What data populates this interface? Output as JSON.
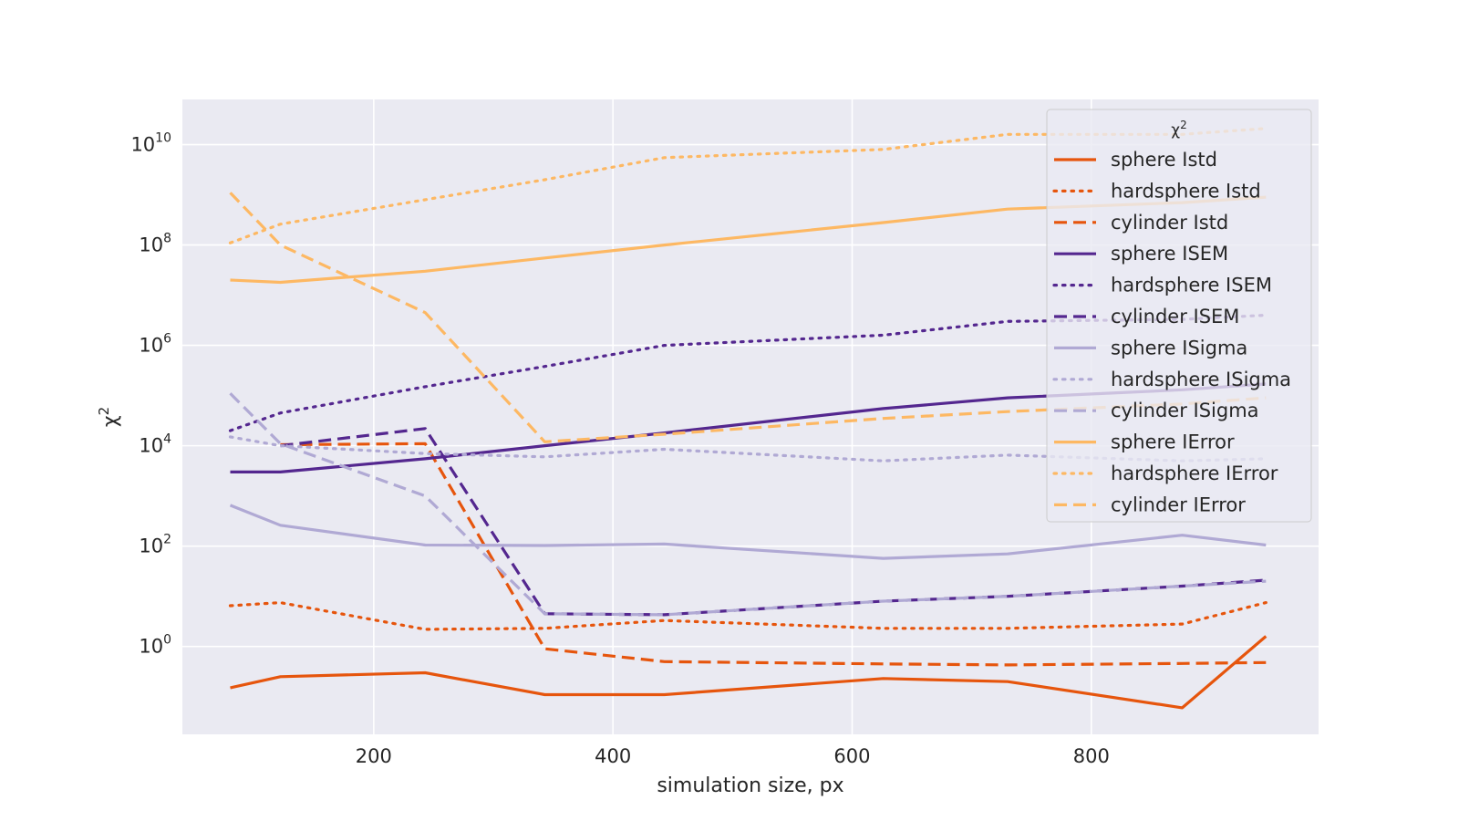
{
  "chart_data": {
    "type": "line",
    "xlabel": "simulation size, px",
    "ylabel": "χ²",
    "ylabel_base": "χ",
    "ylabel_exp": "2",
    "xlim": [
      40,
      990
    ],
    "ylim_log10": [
      -1.75,
      10.9
    ],
    "yscale": "log",
    "grid": true,
    "legend_position": "top-right",
    "legend_title": "χ²",
    "legend_title_base": "χ",
    "legend_title_exp": "2",
    "x_ticks": [
      {
        "value": 200,
        "label": "200"
      },
      {
        "value": 400,
        "label": "400"
      },
      {
        "value": 600,
        "label": "600"
      },
      {
        "value": 800,
        "label": "800"
      }
    ],
    "y_ticks": [
      {
        "exp": 0,
        "base": "10",
        "sup": "0"
      },
      {
        "exp": 2,
        "base": "10",
        "sup": "2"
      },
      {
        "exp": 4,
        "base": "10",
        "sup": "4"
      },
      {
        "exp": 6,
        "base": "10",
        "sup": "6"
      },
      {
        "exp": 8,
        "base": "10",
        "sup": "8"
      },
      {
        "exp": 10,
        "base": "10",
        "sup": "10"
      }
    ],
    "x": [
      80,
      122,
      243,
      343,
      443,
      626,
      730,
      876,
      946
    ],
    "series": [
      {
        "name": "sphere Istd",
        "color": "#e6550d",
        "dash": "solid",
        "values": [
          0.15,
          0.25,
          0.3,
          0.11,
          0.11,
          0.23,
          0.2,
          0.06,
          1.6
        ]
      },
      {
        "name": "hardsphere Istd",
        "color": "#e6550d",
        "dash": "dotted",
        "values": [
          6.5,
          7.5,
          2.2,
          2.3,
          3.3,
          2.3,
          2.3,
          2.8,
          7.5
        ]
      },
      {
        "name": "cylinder Istd",
        "color": "#e6550d",
        "dash": "dashed",
        "values": [
          null,
          10500,
          11000,
          0.9,
          0.5,
          0.45,
          0.43,
          0.46,
          0.48
        ]
      },
      {
        "name": "sphere ISEM",
        "color": "#54278f",
        "dash": "solid",
        "values": [
          3000,
          3000,
          5500,
          10000,
          18000,
          55000,
          90000,
          130000,
          170000
        ]
      },
      {
        "name": "hardsphere ISEM",
        "color": "#54278f",
        "dash": "dotted",
        "values": [
          20000,
          45000,
          150000,
          380000,
          1000000,
          1600000,
          3000000,
          3300000,
          4000000
        ]
      },
      {
        "name": "cylinder ISEM",
        "color": "#54278f",
        "dash": "dashed",
        "values": [
          null,
          10000,
          22000,
          4.5,
          4.3,
          8,
          10,
          16,
          21
        ]
      },
      {
        "name": "sphere ISigma",
        "color": "#b0a9d4",
        "dash": "solid",
        "values": [
          650,
          260,
          105,
          103,
          110,
          57,
          70,
          165,
          105
        ]
      },
      {
        "name": "hardsphere ISigma",
        "color": "#b0a9d4",
        "dash": "dotted",
        "values": [
          15000,
          10000,
          7000,
          6000,
          8500,
          5000,
          6500,
          5000,
          5500
        ]
      },
      {
        "name": "cylinder ISigma",
        "color": "#b0a9d4",
        "dash": "dashed",
        "values": [
          110000,
          11000,
          1000,
          4.5,
          4.3,
          8,
          10,
          16,
          20
        ]
      },
      {
        "name": "sphere IError",
        "color": "#fdb863",
        "dash": "solid",
        "values": [
          20000000,
          18000000,
          30000000,
          55000000,
          100000000,
          280000000,
          520000000,
          700000000,
          900000000
        ]
      },
      {
        "name": "hardsphere IError",
        "color": "#fdb863",
        "dash": "dotted",
        "values": [
          110000000,
          260000000,
          800000000,
          2000000000,
          5500000000,
          8000000000,
          16000000000,
          16000000000,
          21000000000
        ]
      },
      {
        "name": "cylinder IError",
        "color": "#fdb863",
        "dash": "dashed",
        "values": [
          1100000000,
          100000000,
          4500000,
          12000,
          17000,
          35000,
          48000,
          68000,
          90000
        ]
      }
    ]
  }
}
